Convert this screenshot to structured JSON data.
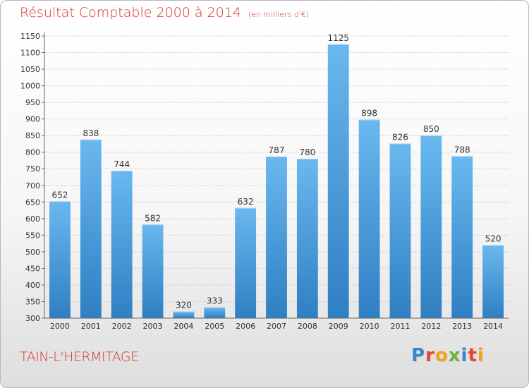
{
  "title": "Résultat Comptable 2000 à 2014",
  "subtitle": "(en milliers d'€)",
  "commune": "TAIN-L'HERMITAGE",
  "logo": {
    "letters": [
      "P",
      "r",
      "o",
      "x",
      "i",
      "t",
      "i"
    ],
    "colors": [
      "#3b86c8",
      "#e8443a",
      "#f5a21b",
      "#6bb43f",
      "#3b86c8",
      "#e8443a",
      "#f5a21b"
    ]
  },
  "colors": {
    "bar_light": "#6ab8ef",
    "bar_dark": "#2f7fc3",
    "title": "#d4332f"
  },
  "chart_data": {
    "type": "bar",
    "categories": [
      "2000",
      "2001",
      "2002",
      "2003",
      "2004",
      "2005",
      "2006",
      "2007",
      "2008",
      "2009",
      "2010",
      "2011",
      "2012",
      "2013",
      "2014"
    ],
    "values": [
      652,
      838,
      744,
      582,
      320,
      333,
      632,
      787,
      780,
      1125,
      898,
      826,
      850,
      788,
      520
    ],
    "ylim": [
      300,
      1150
    ],
    "yticks": [
      300,
      350,
      400,
      450,
      500,
      550,
      600,
      650,
      700,
      750,
      800,
      850,
      900,
      950,
      1000,
      1050,
      1100,
      1150
    ],
    "grid": true,
    "title": "Résultat Comptable 2000 à 2014",
    "xlabel": "",
    "ylabel": ""
  }
}
